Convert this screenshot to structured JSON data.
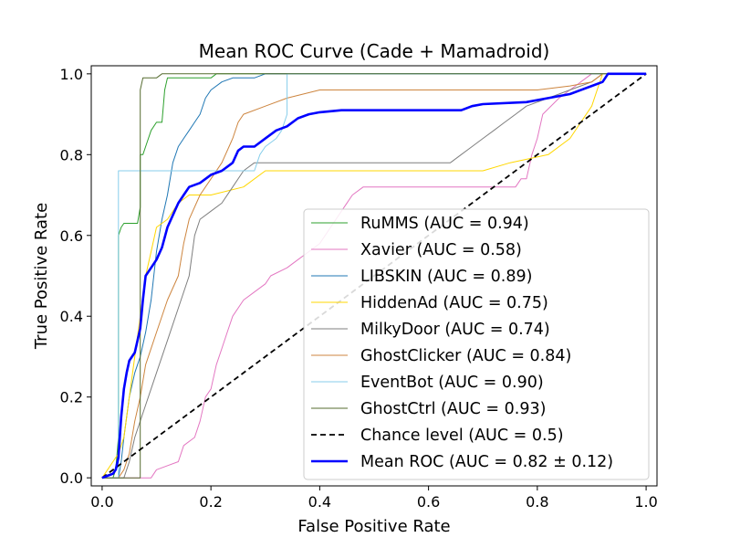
{
  "chart_data": {
    "type": "line",
    "title": "Mean ROC Curve (Cade + Mamadroid)",
    "xlabel": "False Positive Rate",
    "ylabel": "True Positive Rate",
    "xlim": [
      -0.02,
      1.02
    ],
    "ylim": [
      -0.02,
      1.02
    ],
    "xticks": [
      "0.0",
      "0.2",
      "0.4",
      "0.6",
      "0.8",
      "1.0"
    ],
    "yticks": [
      "0.0",
      "0.2",
      "0.4",
      "0.6",
      "0.8",
      "1.0"
    ],
    "grid": false,
    "legend_position": "lower-right",
    "series": [
      {
        "name": "RuMMS (AUC = 0.94)",
        "color": "#2ca02c",
        "width": 1,
        "dash": "",
        "points": [
          [
            0,
            0
          ],
          [
            0.02,
            0
          ],
          [
            0.025,
            0.02
          ],
          [
            0.03,
            0.1
          ],
          [
            0.03,
            0.6
          ],
          [
            0.035,
            0.62
          ],
          [
            0.04,
            0.63
          ],
          [
            0.065,
            0.63
          ],
          [
            0.07,
            0.67
          ],
          [
            0.07,
            0.8
          ],
          [
            0.075,
            0.8
          ],
          [
            0.08,
            0.82
          ],
          [
            0.085,
            0.84
          ],
          [
            0.09,
            0.86
          ],
          [
            0.1,
            0.88
          ],
          [
            0.11,
            0.88
          ],
          [
            0.115,
            0.96
          ],
          [
            0.12,
            0.99
          ],
          [
            0.2,
            0.99
          ],
          [
            0.21,
            1.0
          ],
          [
            1,
            1
          ]
        ]
      },
      {
        "name": "Xavier (AUC = 0.58)",
        "color": "#e377c2",
        "width": 1,
        "dash": "",
        "points": [
          [
            0,
            0
          ],
          [
            0.09,
            0
          ],
          [
            0.1,
            0.02
          ],
          [
            0.14,
            0.04
          ],
          [
            0.15,
            0.08
          ],
          [
            0.17,
            0.1
          ],
          [
            0.18,
            0.14
          ],
          [
            0.19,
            0.2
          ],
          [
            0.2,
            0.22
          ],
          [
            0.21,
            0.28
          ],
          [
            0.22,
            0.32
          ],
          [
            0.23,
            0.36
          ],
          [
            0.24,
            0.4
          ],
          [
            0.26,
            0.44
          ],
          [
            0.28,
            0.46
          ],
          [
            0.3,
            0.48
          ],
          [
            0.31,
            0.5
          ],
          [
            0.34,
            0.52
          ],
          [
            0.36,
            0.54
          ],
          [
            0.38,
            0.56
          ],
          [
            0.4,
            0.58
          ],
          [
            0.42,
            0.62
          ],
          [
            0.44,
            0.66
          ],
          [
            0.46,
            0.7
          ],
          [
            0.48,
            0.72
          ],
          [
            0.52,
            0.72
          ],
          [
            0.56,
            0.72
          ],
          [
            0.6,
            0.72
          ],
          [
            0.7,
            0.72
          ],
          [
            0.76,
            0.72
          ],
          [
            0.77,
            0.74
          ],
          [
            0.78,
            0.74
          ],
          [
            0.79,
            0.8
          ],
          [
            0.8,
            0.84
          ],
          [
            0.81,
            0.9
          ],
          [
            0.84,
            0.94
          ],
          [
            0.86,
            0.96
          ],
          [
            0.88,
            0.98
          ],
          [
            0.9,
            1.0
          ],
          [
            1,
            1
          ]
        ]
      },
      {
        "name": "LIBSKIN (AUC = 0.89)",
        "color": "#1f77b4",
        "width": 1,
        "dash": "",
        "points": [
          [
            0,
            0
          ],
          [
            0.03,
            0
          ],
          [
            0.035,
            0.04
          ],
          [
            0.04,
            0.1
          ],
          [
            0.05,
            0.2
          ],
          [
            0.06,
            0.26
          ],
          [
            0.07,
            0.3
          ],
          [
            0.08,
            0.36
          ],
          [
            0.09,
            0.44
          ],
          [
            0.1,
            0.56
          ],
          [
            0.11,
            0.64
          ],
          [
            0.12,
            0.7
          ],
          [
            0.13,
            0.78
          ],
          [
            0.14,
            0.82
          ],
          [
            0.15,
            0.84
          ],
          [
            0.16,
            0.86
          ],
          [
            0.17,
            0.88
          ],
          [
            0.18,
            0.9
          ],
          [
            0.19,
            0.94
          ],
          [
            0.2,
            0.96
          ],
          [
            0.22,
            0.98
          ],
          [
            0.24,
            0.99
          ],
          [
            0.28,
            0.99
          ],
          [
            0.3,
            1.0
          ],
          [
            1,
            1
          ]
        ]
      },
      {
        "name": "HiddenAd (AUC = 0.75)",
        "color": "#ffd700",
        "width": 1,
        "dash": "",
        "points": [
          [
            0,
            0
          ],
          [
            0.01,
            0.02
          ],
          [
            0.02,
            0.04
          ],
          [
            0.03,
            0.06
          ],
          [
            0.04,
            0.1
          ],
          [
            0.05,
            0.2
          ],
          [
            0.06,
            0.3
          ],
          [
            0.07,
            0.4
          ],
          [
            0.08,
            0.5
          ],
          [
            0.09,
            0.56
          ],
          [
            0.1,
            0.62
          ],
          [
            0.12,
            0.64
          ],
          [
            0.14,
            0.68
          ],
          [
            0.16,
            0.7
          ],
          [
            0.2,
            0.7
          ],
          [
            0.26,
            0.72
          ],
          [
            0.3,
            0.76
          ],
          [
            0.38,
            0.76
          ],
          [
            0.5,
            0.76
          ],
          [
            0.62,
            0.76
          ],
          [
            0.66,
            0.76
          ],
          [
            0.7,
            0.76
          ],
          [
            0.75,
            0.78
          ],
          [
            0.82,
            0.8
          ],
          [
            0.86,
            0.84
          ],
          [
            0.88,
            0.88
          ],
          [
            0.9,
            0.92
          ],
          [
            0.91,
            0.96
          ],
          [
            0.92,
            1.0
          ],
          [
            1,
            1
          ]
        ]
      },
      {
        "name": "MilkyDoor (AUC = 0.74)",
        "color": "#7f7f7f",
        "width": 1,
        "dash": "",
        "points": [
          [
            0,
            0
          ],
          [
            0.04,
            0
          ],
          [
            0.05,
            0.04
          ],
          [
            0.06,
            0.1
          ],
          [
            0.08,
            0.18
          ],
          [
            0.1,
            0.26
          ],
          [
            0.12,
            0.34
          ],
          [
            0.14,
            0.42
          ],
          [
            0.16,
            0.5
          ],
          [
            0.17,
            0.6
          ],
          [
            0.18,
            0.64
          ],
          [
            0.2,
            0.66
          ],
          [
            0.22,
            0.68
          ],
          [
            0.24,
            0.72
          ],
          [
            0.26,
            0.76
          ],
          [
            0.28,
            0.78
          ],
          [
            0.4,
            0.78
          ],
          [
            0.5,
            0.78
          ],
          [
            0.6,
            0.78
          ],
          [
            0.64,
            0.78
          ],
          [
            0.66,
            0.8
          ],
          [
            0.68,
            0.82
          ],
          [
            0.7,
            0.84
          ],
          [
            0.72,
            0.86
          ],
          [
            0.74,
            0.88
          ],
          [
            0.76,
            0.9
          ],
          [
            0.78,
            0.92
          ],
          [
            0.82,
            0.94
          ],
          [
            0.86,
            0.96
          ],
          [
            0.9,
            0.98
          ],
          [
            0.92,
            1.0
          ],
          [
            1,
            1
          ]
        ]
      },
      {
        "name": "GhostClicker (AUC = 0.84)",
        "color": "#cd853f",
        "width": 1,
        "dash": "",
        "points": [
          [
            0,
            0
          ],
          [
            0.03,
            0
          ],
          [
            0.04,
            0.02
          ],
          [
            0.05,
            0.06
          ],
          [
            0.06,
            0.14
          ],
          [
            0.07,
            0.2
          ],
          [
            0.08,
            0.28
          ],
          [
            0.1,
            0.36
          ],
          [
            0.12,
            0.44
          ],
          [
            0.14,
            0.5
          ],
          [
            0.15,
            0.58
          ],
          [
            0.16,
            0.64
          ],
          [
            0.18,
            0.7
          ],
          [
            0.2,
            0.74
          ],
          [
            0.22,
            0.78
          ],
          [
            0.24,
            0.84
          ],
          [
            0.25,
            0.88
          ],
          [
            0.26,
            0.9
          ],
          [
            0.3,
            0.92
          ],
          [
            0.34,
            0.94
          ],
          [
            0.4,
            0.96
          ],
          [
            0.5,
            0.96
          ],
          [
            0.7,
            0.96
          ],
          [
            0.8,
            0.96
          ],
          [
            0.86,
            0.97
          ],
          [
            0.9,
            0.98
          ],
          [
            0.92,
            1.0
          ],
          [
            1,
            1
          ]
        ]
      },
      {
        "name": "EventBot (AUC = 0.90)",
        "color": "#87ceeb",
        "width": 1,
        "dash": "",
        "points": [
          [
            0,
            0
          ],
          [
            0.03,
            0
          ],
          [
            0.03,
            0.76
          ],
          [
            0.1,
            0.76
          ],
          [
            0.28,
            0.76
          ],
          [
            0.29,
            0.8
          ],
          [
            0.3,
            0.82
          ],
          [
            0.32,
            0.84
          ],
          [
            0.33,
            0.86
          ],
          [
            0.34,
            0.9
          ],
          [
            0.34,
            1.0
          ],
          [
            1,
            1
          ]
        ]
      },
      {
        "name": "GhostCtrl (AUC = 0.93)",
        "color": "#556b2f",
        "width": 1,
        "dash": "",
        "points": [
          [
            0,
            0
          ],
          [
            0.07,
            0
          ],
          [
            0.07,
            0.96
          ],
          [
            0.075,
            0.99
          ],
          [
            0.1,
            0.99
          ],
          [
            0.11,
            1.0
          ],
          [
            1,
            1
          ]
        ]
      },
      {
        "name": "Chance level (AUC = 0.5)",
        "color": "#000000",
        "width": 1.8,
        "dash": "6,4",
        "points": [
          [
            0,
            0
          ],
          [
            1,
            1
          ]
        ]
      },
      {
        "name": "Mean ROC (AUC = 0.82 ± 0.12)",
        "color": "#0000ff",
        "width": 2.6,
        "dash": "",
        "points": [
          [
            0,
            0
          ],
          [
            0.01,
            0.005
          ],
          [
            0.02,
            0.01
          ],
          [
            0.025,
            0.02
          ],
          [
            0.03,
            0.05
          ],
          [
            0.035,
            0.15
          ],
          [
            0.04,
            0.22
          ],
          [
            0.045,
            0.26
          ],
          [
            0.05,
            0.29
          ],
          [
            0.06,
            0.31
          ],
          [
            0.065,
            0.34
          ],
          [
            0.07,
            0.37
          ],
          [
            0.075,
            0.44
          ],
          [
            0.08,
            0.5
          ],
          [
            0.09,
            0.52
          ],
          [
            0.1,
            0.54
          ],
          [
            0.11,
            0.57
          ],
          [
            0.12,
            0.62
          ],
          [
            0.13,
            0.65
          ],
          [
            0.14,
            0.68
          ],
          [
            0.15,
            0.7
          ],
          [
            0.16,
            0.72
          ],
          [
            0.18,
            0.73
          ],
          [
            0.2,
            0.75
          ],
          [
            0.22,
            0.76
          ],
          [
            0.24,
            0.78
          ],
          [
            0.25,
            0.81
          ],
          [
            0.26,
            0.82
          ],
          [
            0.28,
            0.82
          ],
          [
            0.3,
            0.84
          ],
          [
            0.32,
            0.86
          ],
          [
            0.34,
            0.87
          ],
          [
            0.36,
            0.89
          ],
          [
            0.38,
            0.9
          ],
          [
            0.4,
            0.905
          ],
          [
            0.44,
            0.91
          ],
          [
            0.5,
            0.91
          ],
          [
            0.6,
            0.91
          ],
          [
            0.66,
            0.91
          ],
          [
            0.68,
            0.92
          ],
          [
            0.7,
            0.925
          ],
          [
            0.78,
            0.93
          ],
          [
            0.82,
            0.94
          ],
          [
            0.86,
            0.95
          ],
          [
            0.9,
            0.97
          ],
          [
            0.92,
            0.98
          ],
          [
            0.93,
            1.0
          ],
          [
            0.96,
            1.0
          ],
          [
            1,
            1.0
          ]
        ]
      }
    ],
    "legend_colors": {
      "mean_label": "#c00000"
    }
  }
}
